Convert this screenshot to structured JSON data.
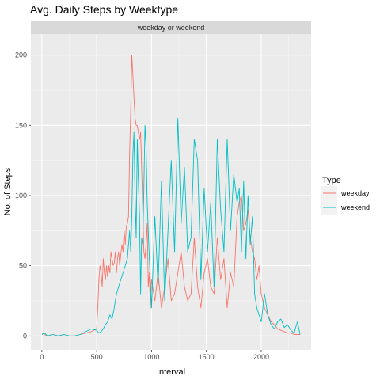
{
  "chart_data": {
    "type": "line",
    "title": "Avg. Daily Steps by Weektype",
    "facet_label": "weekday  or weekend",
    "xlabel": "Interval",
    "ylabel": "No. of Steps",
    "xlim": [
      -100,
      2455
    ],
    "ylim": [
      -10,
      215
    ],
    "x_ticks": [
      0,
      500,
      1000,
      1500,
      2000
    ],
    "x_tick_labels": [
      "0",
      "500",
      "1000",
      "1500",
      "2000"
    ],
    "y_ticks": [
      0,
      50,
      100,
      150,
      200
    ],
    "y_tick_labels": [
      "0",
      "50",
      "100",
      "150",
      "200"
    ],
    "grid": true,
    "legend": {
      "title": "Type",
      "position": "right"
    },
    "series": [
      {
        "name": "weekday",
        "color": "#F8766D",
        "x": [
          0,
          25,
          50,
          100,
          150,
          200,
          250,
          300,
          350,
          400,
          450,
          500,
          510,
          520,
          530,
          540,
          550,
          560,
          570,
          580,
          590,
          600,
          610,
          620,
          630,
          640,
          650,
          660,
          670,
          680,
          690,
          700,
          710,
          720,
          730,
          740,
          750,
          760,
          770,
          780,
          790,
          800,
          810,
          820,
          830,
          840,
          850,
          860,
          870,
          880,
          890,
          900,
          910,
          920,
          930,
          940,
          950,
          960,
          970,
          980,
          990,
          1000,
          1030,
          1060,
          1090,
          1120,
          1150,
          1180,
          1210,
          1240,
          1270,
          1300,
          1330,
          1360,
          1390,
          1420,
          1450,
          1480,
          1510,
          1540,
          1570,
          1600,
          1630,
          1660,
          1690,
          1720,
          1750,
          1780,
          1800,
          1820,
          1840,
          1860,
          1880,
          1900,
          1920,
          1940,
          1960,
          1980,
          2000,
          2030,
          2060,
          2090,
          2120,
          2150,
          2180,
          2210,
          2240,
          2270,
          2300,
          2330,
          2355
        ],
        "y": [
          2,
          1,
          0,
          1,
          0,
          1,
          0,
          0,
          1,
          2,
          3,
          5,
          20,
          40,
          50,
          45,
          35,
          55,
          45,
          40,
          50,
          42,
          50,
          45,
          60,
          55,
          50,
          52,
          60,
          45,
          55,
          60,
          50,
          58,
          65,
          60,
          75,
          65,
          78,
          80,
          85,
          130,
          160,
          200,
          185,
          170,
          155,
          150,
          150,
          145,
          140,
          145,
          120,
          90,
          60,
          55,
          65,
          80,
          35,
          45,
          20,
          40,
          25,
          45,
          20,
          35,
          55,
          25,
          30,
          45,
          60,
          35,
          25,
          30,
          70,
          35,
          20,
          45,
          55,
          35,
          30,
          70,
          40,
          55,
          20,
          45,
          35,
          85,
          95,
          100,
          75,
          80,
          90,
          70,
          60,
          55,
          40,
          50,
          30,
          20,
          15,
          10,
          8,
          5,
          4,
          3,
          2,
          2,
          1,
          1,
          1
        ]
      },
      {
        "name": "weekend",
        "color": "#00BFC4",
        "x": [
          0,
          25,
          50,
          100,
          150,
          200,
          250,
          300,
          350,
          400,
          450,
          500,
          520,
          540,
          560,
          580,
          600,
          620,
          640,
          660,
          680,
          700,
          720,
          740,
          760,
          780,
          800,
          810,
          820,
          830,
          840,
          850,
          860,
          870,
          880,
          890,
          900,
          910,
          920,
          930,
          940,
          950,
          960,
          980,
          1000,
          1030,
          1060,
          1090,
          1120,
          1150,
          1180,
          1210,
          1240,
          1270,
          1300,
          1330,
          1360,
          1390,
          1420,
          1450,
          1480,
          1510,
          1540,
          1570,
          1600,
          1630,
          1660,
          1690,
          1720,
          1750,
          1780,
          1800,
          1820,
          1840,
          1860,
          1880,
          1900,
          1920,
          1940,
          1960,
          1980,
          2000,
          2030,
          2060,
          2090,
          2120,
          2150,
          2180,
          2210,
          2240,
          2270,
          2300,
          2330,
          2355
        ],
        "y": [
          1,
          2,
          0,
          1,
          0,
          1,
          0,
          0,
          1,
          3,
          5,
          4,
          2,
          3,
          5,
          8,
          10,
          15,
          12,
          20,
          30,
          35,
          40,
          45,
          50,
          55,
          75,
          60,
          85,
          130,
          145,
          100,
          70,
          140,
          110,
          85,
          30,
          70,
          65,
          105,
          150,
          135,
          95,
          55,
          20,
          85,
          35,
          110,
          25,
          75,
          125,
          60,
          155,
          80,
          120,
          60,
          70,
          140,
          125,
          40,
          105,
          60,
          95,
          35,
          140,
          90,
          60,
          140,
          75,
          115,
          95,
          105,
          60,
          110,
          55,
          100,
          65,
          85,
          30,
          20,
          15,
          10,
          30,
          15,
          8,
          5,
          10,
          12,
          6,
          8,
          4,
          2,
          10,
          1
        ]
      }
    ]
  }
}
